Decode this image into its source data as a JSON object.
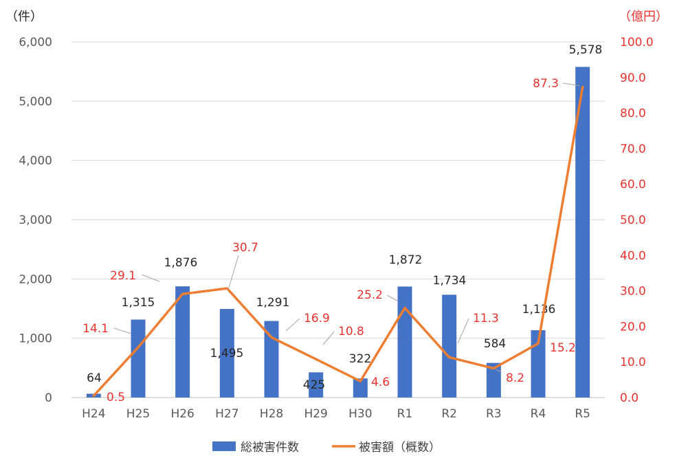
{
  "chart_data": {
    "type": "bar+line",
    "categories": [
      "H24",
      "H25",
      "H26",
      "H27",
      "H28",
      "H29",
      "H30",
      "R1",
      "R2",
      "R3",
      "R4",
      "R5"
    ],
    "series": [
      {
        "name": "総被害件数",
        "type": "bar",
        "axis": "left",
        "values": [
          64,
          1315,
          1876,
          1495,
          1291,
          425,
          322,
          1872,
          1734,
          584,
          1136,
          5578
        ],
        "labels": [
          "64",
          "1,315",
          "1,876",
          "1,495",
          "1,291",
          "425",
          "322",
          "1,872",
          "1,734",
          "584",
          "1,136",
          "5,578"
        ],
        "color": "#4472c4"
      },
      {
        "name": "被害額（概数）",
        "type": "line",
        "axis": "right",
        "values": [
          0.5,
          14.1,
          29.1,
          30.7,
          16.9,
          10.8,
          4.6,
          25.2,
          11.3,
          8.2,
          15.2,
          87.3
        ],
        "labels": [
          "0.5",
          "14.1",
          "29.1",
          "30.7",
          "16.9",
          "10.8",
          "4.6",
          "25.2",
          "11.3",
          "8.2",
          "15.2",
          "87.3"
        ],
        "color": "#ed7d31",
        "label_color": "#e8322e"
      }
    ],
    "y_left": {
      "unit": "（件）",
      "range": [
        0,
        6000
      ],
      "ticks": [
        "0",
        "1,000",
        "2,000",
        "3,000",
        "4,000",
        "5,000",
        "6,000"
      ]
    },
    "y_right": {
      "unit": "（億円）",
      "range": [
        0,
        100
      ],
      "ticks": [
        "0.0",
        "10.0",
        "20.0",
        "30.0",
        "40.0",
        "50.0",
        "60.0",
        "70.0",
        "80.0",
        "90.0",
        "100.0"
      ]
    },
    "grid": true,
    "legend": [
      "総被害件数",
      "被害額（概数）"
    ],
    "legend_position": "bottom"
  }
}
